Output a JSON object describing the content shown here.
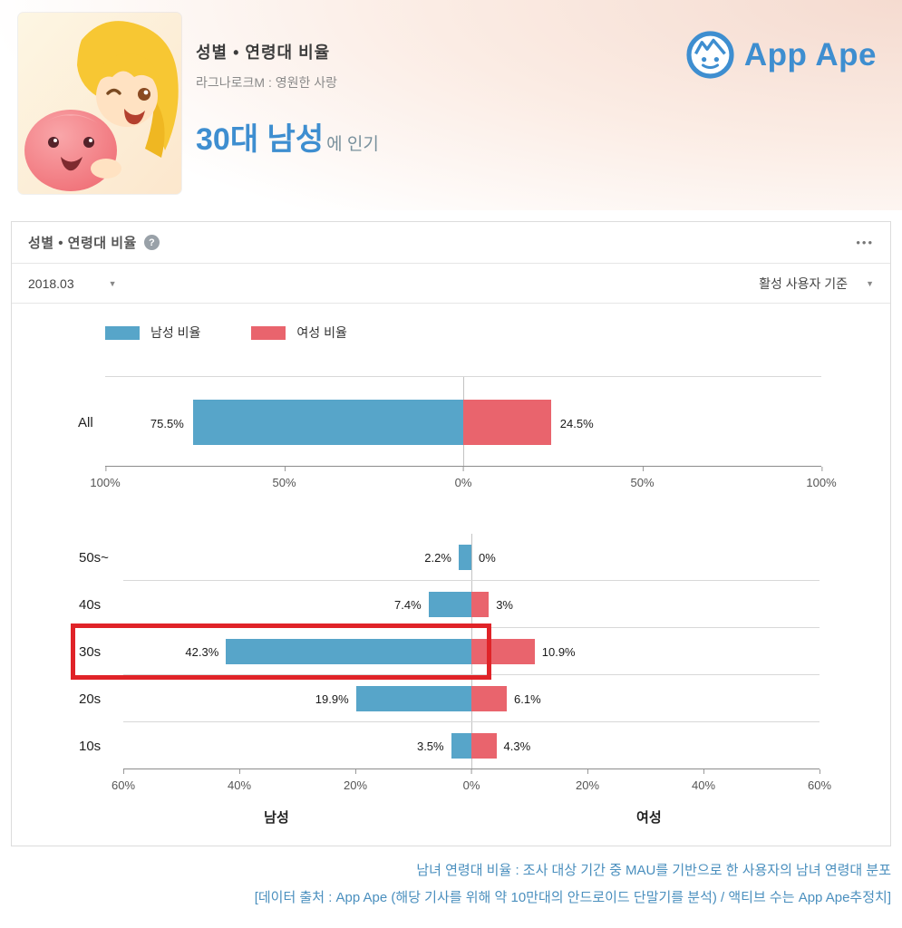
{
  "banner": {
    "title": "성별 • 연령대 비율",
    "app_name": "라그나로크M : 영원한 사랑",
    "highlight_main": "30대 남성",
    "highlight_suffix": "에 인기",
    "brand": {
      "name": "App Ape",
      "color": "#3e8ed0"
    }
  },
  "card": {
    "title": "성별 • 연령대 비율",
    "help_icon": "?",
    "menu": "•••",
    "filters": {
      "period": "2018.03",
      "basis": "활성 사용자 기준"
    },
    "legend": [
      {
        "label": "남성 비율",
        "color": "#57a5c9"
      },
      {
        "label": "여성 비율",
        "color": "#e9646d"
      }
    ]
  },
  "chart_data": [
    {
      "type": "bar",
      "orientation": "horizontal-diverging",
      "categories": [
        "All"
      ],
      "series": [
        {
          "name": "남성 비율",
          "values": [
            75.5
          ]
        },
        {
          "name": "여성 비율",
          "values": [
            24.5
          ]
        }
      ],
      "labels_male": [
        "75.5%"
      ],
      "labels_female": [
        "24.5%"
      ],
      "xlim": [
        -100,
        100
      ],
      "ticks": [
        "100%",
        "50%",
        "0%",
        "50%",
        "100%"
      ],
      "grid": true,
      "legend_position": "top"
    },
    {
      "type": "bar",
      "orientation": "horizontal-diverging",
      "categories": [
        "50s~",
        "40s",
        "30s",
        "20s",
        "10s"
      ],
      "series": [
        {
          "name": "남성 비율",
          "values": [
            2.2,
            7.4,
            42.3,
            19.9,
            3.5
          ]
        },
        {
          "name": "여성 비율",
          "values": [
            0,
            3,
            10.9,
            6.1,
            4.3
          ]
        }
      ],
      "labels_male": [
        "2.2%",
        "7.4%",
        "42.3%",
        "19.9%",
        "3.5%"
      ],
      "labels_female": [
        "0%",
        "3%",
        "10.9%",
        "6.1%",
        "4.3%"
      ],
      "xlim": [
        -60,
        60
      ],
      "ticks": [
        "60%",
        "40%",
        "20%",
        "0%",
        "20%",
        "40%",
        "60%"
      ],
      "xlabel_left": "남성",
      "xlabel_right": "여성",
      "highlighted_category": "30s",
      "highlight_color": "#e02328",
      "grid": true
    }
  ],
  "footer": {
    "line1": "남녀 연령대 비율 : 조사 대상 기간 중 MAU를 기반으로 한 사용자의 남녀 연령대 분포",
    "line2": "[데이터 출처 : App Ape (해당 기사를 위해 약 10만대의 안드로이드 단말기를 분석) / 액티브 수는 App Ape추정치]",
    "color": "#4a8fbe"
  }
}
